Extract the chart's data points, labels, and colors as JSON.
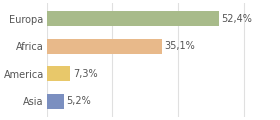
{
  "categories": [
    "Europa",
    "Africa",
    "America",
    "Asia"
  ],
  "values": [
    52.4,
    35.1,
    7.3,
    5.2
  ],
  "labels": [
    "52,4%",
    "35,1%",
    "7,3%",
    "5,2%"
  ],
  "bar_colors": [
    "#a8bb8a",
    "#e8b98a",
    "#e8c86a",
    "#7b8fc0"
  ],
  "background_color": "#ffffff",
  "xlim": [
    0,
    70
  ],
  "label_fontsize": 7.0,
  "category_fontsize": 7.0,
  "bar_height": 0.55,
  "grid_color": "#e0e0e0"
}
